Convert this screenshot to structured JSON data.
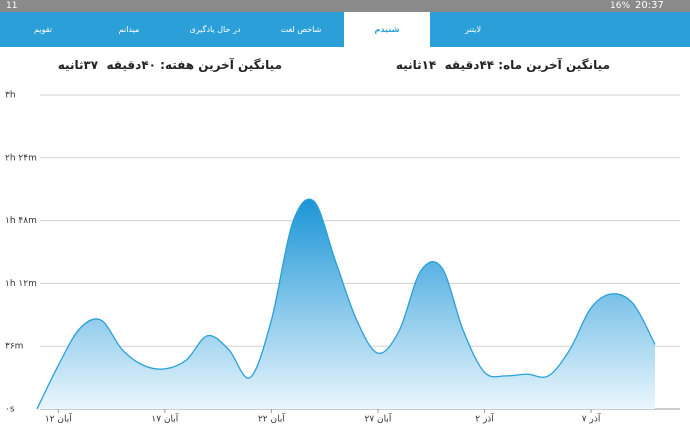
{
  "status_bar": {
    "notification": "11",
    "battery": "16%",
    "time": "20:37"
  },
  "tabs": [
    "لایتنر",
    "شنیدم",
    "شاخص لغت",
    "در حال یادگیری",
    "میدانم",
    "تقویم"
  ],
  "summary": {
    "month": "میانگین آخرین ماه: ۴۴دقیقه  ۱۴ثانیه",
    "week": "میانگین آخرین هفته: ۴۰دقیقه  ۳۷ثانیه"
  },
  "chart_data": {
    "type": "area",
    "color": "#2a9fd8",
    "categories": [
      null,
      "۱۲ آبان",
      null,
      null,
      null,
      null,
      "۱۷ آبان",
      null,
      null,
      null,
      null,
      "۲۲ آبان",
      null,
      null,
      null,
      null,
      "۲۷ آبان",
      null,
      null,
      null,
      null,
      "۲ آذر",
      null,
      null,
      null,
      null,
      "۷ آذر",
      null,
      null,
      null
    ],
    "values": [
      0,
      25,
      46,
      51,
      34,
      25,
      23,
      28,
      42,
      34,
      18,
      51,
      107,
      119,
      85,
      51,
      32,
      45,
      79,
      81,
      45,
      21,
      19,
      20,
      19,
      34,
      58,
      66,
      60,
      37
    ],
    "ylim": [
      0,
      180
    ],
    "yticks": [
      {
        "value": 0,
        "label": "۰s"
      },
      {
        "value": 36,
        "label": "۳۶m"
      },
      {
        "value": 72,
        "label": "۱h ۱۲m"
      },
      {
        "value": 108,
        "label": "۱h ۴۸m"
      },
      {
        "value": 144,
        "label": "۲h ۲۴m"
      },
      {
        "value": 180,
        "label": "۳h"
      }
    ],
    "grid": true
  }
}
